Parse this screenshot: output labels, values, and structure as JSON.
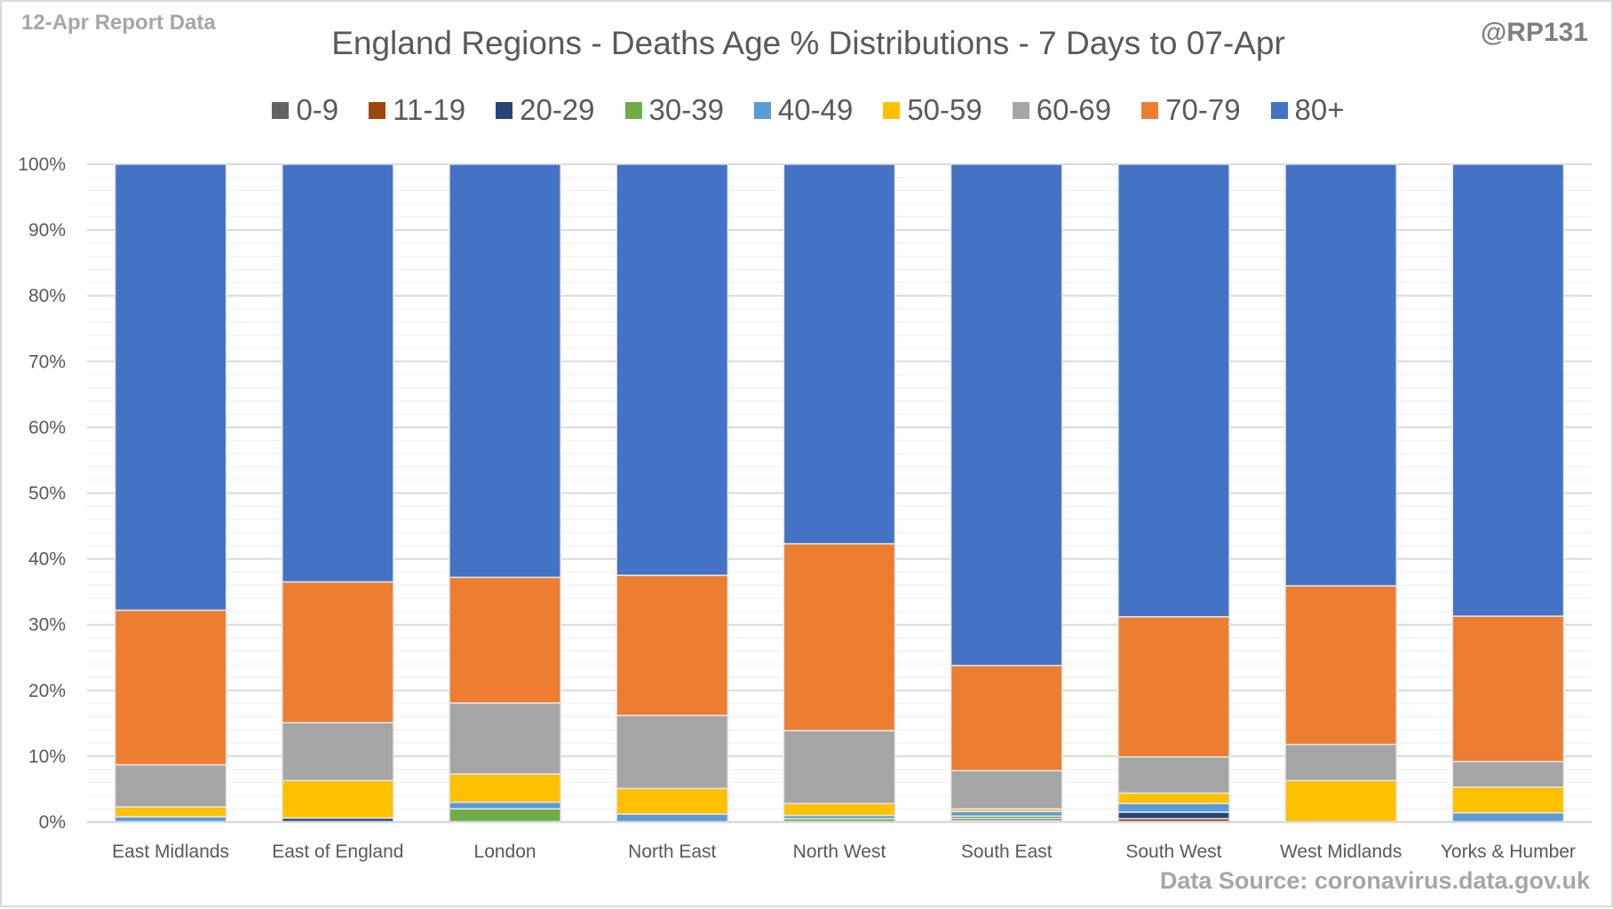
{
  "header": {
    "report_label": "12-Apr Report Data",
    "handle": "@RP131",
    "source": "Data Source: coronavirus.data.gov.uk"
  },
  "chart_data": {
    "type": "bar",
    "stacked": true,
    "percent_stacked": true,
    "title": "England Regions - Deaths Age % Distributions - 7 Days to 07-Apr",
    "xlabel": "",
    "ylabel": "",
    "ylim": [
      0,
      100
    ],
    "yticks": [
      "0%",
      "10%",
      "20%",
      "30%",
      "40%",
      "50%",
      "60%",
      "70%",
      "80%",
      "90%",
      "100%"
    ],
    "grid": true,
    "legend_position": "top",
    "categories": [
      "East Midlands",
      "East of England",
      "London",
      "North East",
      "North West",
      "South East",
      "South West",
      "West Midlands",
      "Yorks & Humber"
    ],
    "series": [
      {
        "name": "0-9",
        "color": "#636363",
        "values": [
          0,
          0,
          0,
          0,
          0,
          0.2,
          0,
          0,
          0
        ]
      },
      {
        "name": "11-19",
        "color": "#9e480e",
        "values": [
          0,
          0,
          0,
          0,
          0,
          0,
          0.5,
          0,
          0
        ]
      },
      {
        "name": "20-29",
        "color": "#264478",
        "values": [
          0,
          0.6,
          0,
          0,
          0,
          0.3,
          1.0,
          0,
          0
        ]
      },
      {
        "name": "30-39",
        "color": "#70ad47",
        "values": [
          0,
          0,
          2.0,
          0,
          0.5,
          0.4,
          0,
          0,
          0
        ]
      },
      {
        "name": "40-49",
        "color": "#5b9bd5",
        "values": [
          0.8,
          0,
          1.0,
          1.2,
          0.5,
          0.7,
          1.3,
          0,
          1.4
        ]
      },
      {
        "name": "50-59",
        "color": "#ffc000",
        "values": [
          1.5,
          5.7,
          4.3,
          3.9,
          1.8,
          0.4,
          1.6,
          6.3,
          3.9
        ]
      },
      {
        "name": "60-69",
        "color": "#a5a5a5",
        "values": [
          6.4,
          8.8,
          10.8,
          11.1,
          11.1,
          5.8,
          5.5,
          5.5,
          3.9
        ]
      },
      {
        "name": "70-79",
        "color": "#ed7d31",
        "values": [
          23.5,
          21.4,
          19.1,
          21.3,
          28.4,
          16.0,
          21.3,
          24.1,
          22.1
        ]
      },
      {
        "name": "80+",
        "color": "#4472c4",
        "values": [
          67.8,
          63.5,
          62.8,
          62.5,
          57.7,
          76.2,
          68.8,
          64.1,
          68.7
        ]
      }
    ]
  }
}
